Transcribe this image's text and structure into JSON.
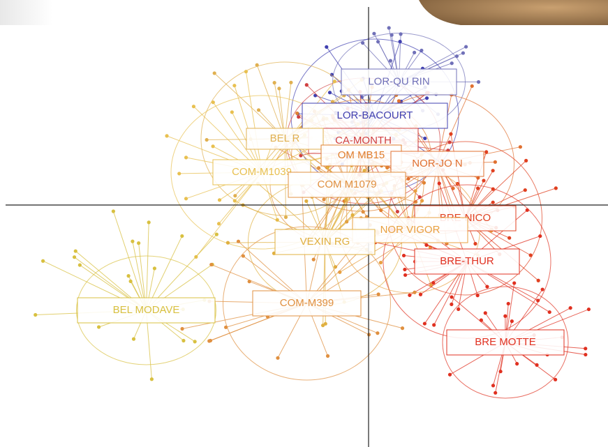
{
  "labels": [
    "LOR-QU RIN",
    "LOR-BACOURT",
    "CA-MONTH",
    "BEL R",
    "OM MB15",
    "NOR-JO N",
    "COM-M1039",
    "COM M1079",
    "BRE-NICO",
    "NOR VIGOR",
    "VEXIN RG",
    "BRE-THUR",
    "BEL MODAVE",
    "COM-M399",
    "BRE MOTTE"
  ]
}
